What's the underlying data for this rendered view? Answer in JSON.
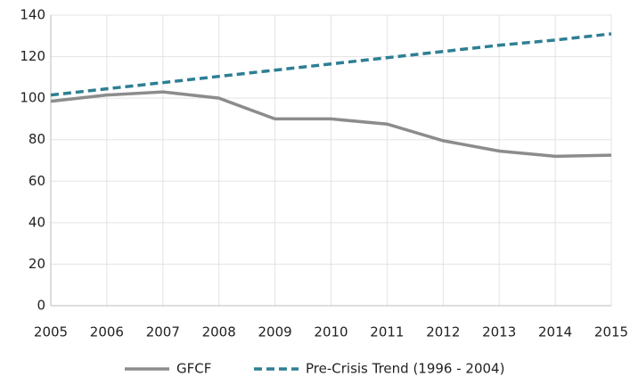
{
  "chart_data": {
    "type": "line",
    "x": [
      2005,
      2006,
      2007,
      2008,
      2009,
      2010,
      2011,
      2012,
      2013,
      2014,
      2015
    ],
    "series": [
      {
        "name": "GFCF",
        "color": "#8c8c8c",
        "dashed": false,
        "values": [
          98.5,
          101.5,
          103,
          100,
          90,
          90,
          87.5,
          79.5,
          74.5,
          72,
          72.5
        ]
      },
      {
        "name": "Pre-Crisis Trend (1996 - 2004)",
        "color": "#2e7f93",
        "dashed": true,
        "values": [
          101.5,
          104.5,
          107.5,
          110.5,
          113.5,
          116.5,
          119.5,
          122.5,
          125.5,
          128,
          131
        ]
      }
    ],
    "xlim": [
      2005,
      2015
    ],
    "xticks": [
      2005,
      2006,
      2007,
      2008,
      2009,
      2010,
      2011,
      2012,
      2013,
      2014,
      2015
    ],
    "ylim": [
      0,
      140
    ],
    "yticks": [
      0,
      20,
      40,
      60,
      80,
      100,
      120,
      140
    ],
    "grid": true,
    "legend": "bottom"
  }
}
